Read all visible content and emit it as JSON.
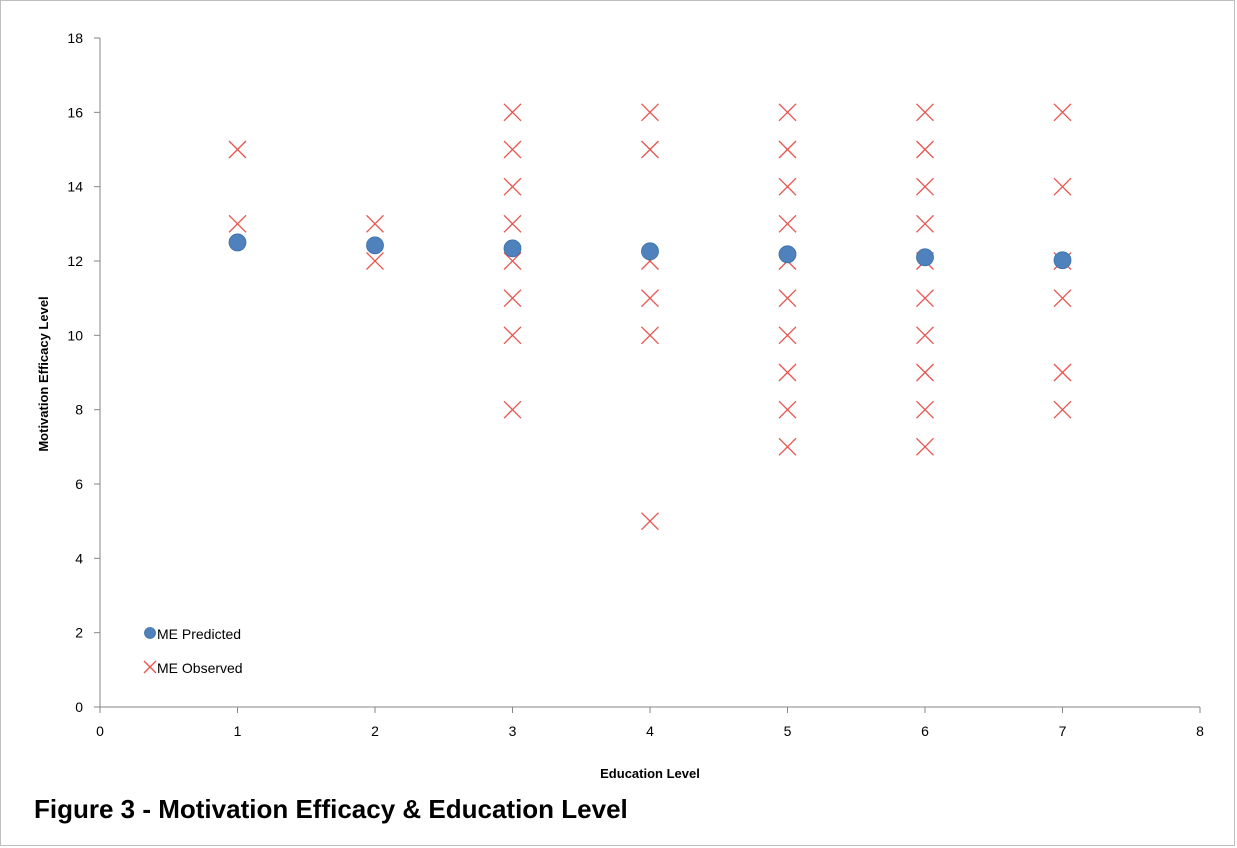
{
  "caption": "Figure 3 - Motivation Efficacy & Education Level",
  "chart_data": {
    "type": "scatter",
    "xlabel": "Education Level",
    "ylabel": "Motivation Efficacy Level",
    "xlim": [
      0,
      8
    ],
    "ylim": [
      0,
      18
    ],
    "x_ticks": [
      0,
      1,
      2,
      3,
      4,
      5,
      6,
      7,
      8
    ],
    "y_ticks": [
      0,
      2,
      4,
      6,
      8,
      10,
      12,
      14,
      16,
      18
    ],
    "grid": false,
    "legend_position": "bottom-left",
    "series": [
      {
        "name": "ME Predicted",
        "marker": "circle",
        "color": "#4f81bd",
        "points": [
          [
            1,
            12.5
          ],
          [
            2,
            12.42
          ],
          [
            3,
            12.34
          ],
          [
            4,
            12.26
          ],
          [
            5,
            12.18
          ],
          [
            6,
            12.1
          ],
          [
            7,
            12.02
          ]
        ]
      },
      {
        "name": "ME Observed",
        "marker": "x",
        "color": "#e8554f",
        "points": [
          [
            1,
            15
          ],
          [
            1,
            13
          ],
          [
            2,
            13
          ],
          [
            2,
            12
          ],
          [
            3,
            16
          ],
          [
            3,
            15
          ],
          [
            3,
            14
          ],
          [
            3,
            13
          ],
          [
            3,
            12
          ],
          [
            3,
            11
          ],
          [
            3,
            10
          ],
          [
            3,
            8
          ],
          [
            4,
            16
          ],
          [
            4,
            15
          ],
          [
            4,
            12
          ],
          [
            4,
            11
          ],
          [
            4,
            10
          ],
          [
            4,
            5
          ],
          [
            5,
            16
          ],
          [
            5,
            15
          ],
          [
            5,
            14
          ],
          [
            5,
            13
          ],
          [
            5,
            12
          ],
          [
            5,
            11
          ],
          [
            5,
            10
          ],
          [
            5,
            9
          ],
          [
            5,
            8
          ],
          [
            5,
            7
          ],
          [
            6,
            16
          ],
          [
            6,
            15
          ],
          [
            6,
            14
          ],
          [
            6,
            13
          ],
          [
            6,
            12
          ],
          [
            6,
            11
          ],
          [
            6,
            10
          ],
          [
            6,
            9
          ],
          [
            6,
            8
          ],
          [
            6,
            7
          ],
          [
            7,
            16
          ],
          [
            7,
            14
          ],
          [
            7,
            12
          ],
          [
            7,
            11
          ],
          [
            7,
            9
          ],
          [
            7,
            8
          ]
        ]
      }
    ]
  }
}
